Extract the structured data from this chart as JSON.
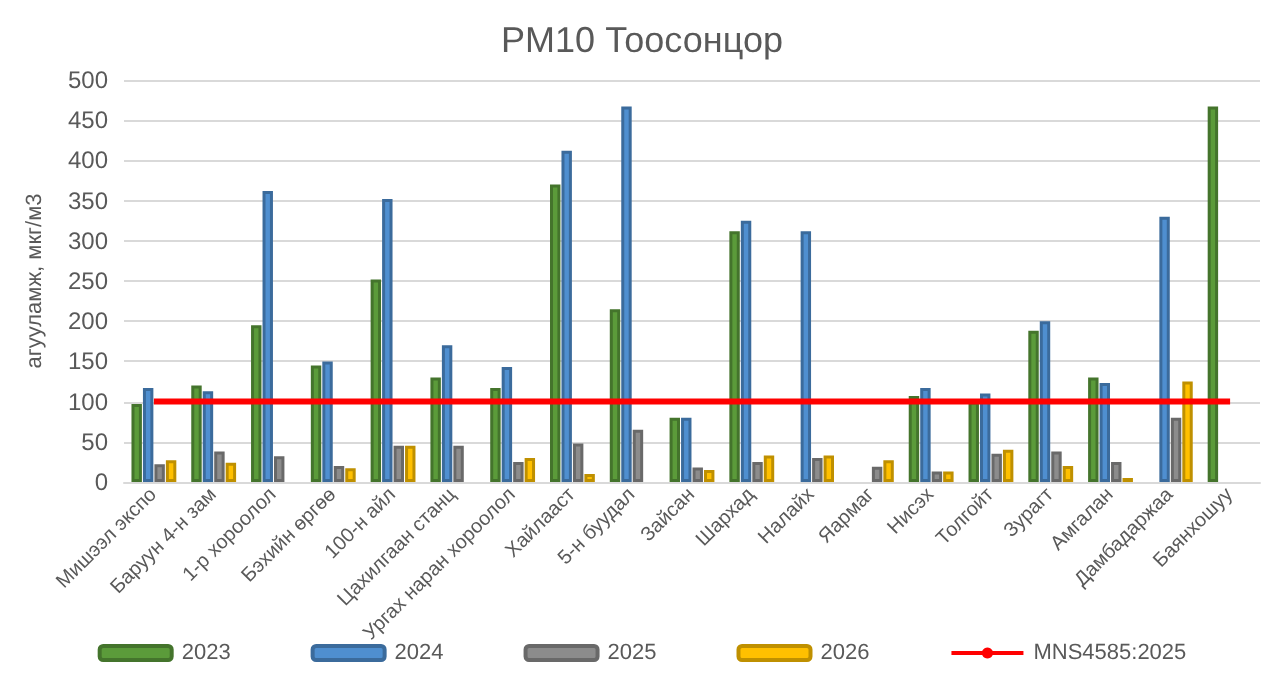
{
  "chart_data": {
    "type": "bar",
    "title": "PM10 Тоосонцор",
    "ylabel": "агууламж, мкг/м3",
    "categories": [
      "Мишээл экспо",
      "Баруун 4-н зам",
      "1-р хороолол",
      "Бэхийн өргөө",
      "100-н айл",
      "Цахилгаан станц",
      "Ургах наран хороолол",
      "Хайлааст",
      "5-н буудал",
      "Зайсан",
      "Шархад",
      "Налайх",
      "Яармаг",
      "Нисэх",
      "Толгойт",
      "Зурагт",
      "Амгалан",
      "Дамбадаржаа",
      "Баянхошуу"
    ],
    "series": [
      {
        "name": "2023",
        "color": "#5b9b3a",
        "values": [
          97,
          120,
          195,
          145,
          252,
          130,
          117,
          370,
          215,
          80,
          312,
          null,
          null,
          107,
          100,
          188,
          130,
          null,
          467
        ]
      },
      {
        "name": "2024",
        "color": "#4f8fd0",
        "values": [
          117,
          113,
          362,
          150,
          352,
          170,
          143,
          412,
          467,
          80,
          325,
          312,
          null,
          117,
          110,
          200,
          123,
          330,
          null
        ]
      },
      {
        "name": "2025",
        "color": "#8c8c8c",
        "values": [
          22,
          38,
          32,
          20,
          45,
          45,
          25,
          48,
          65,
          18,
          25,
          30,
          19,
          13,
          35,
          38,
          25,
          80,
          null
        ]
      },
      {
        "name": "2026",
        "color": "#ffc000",
        "values": [
          27,
          24,
          null,
          17,
          45,
          null,
          30,
          10,
          null,
          15,
          33,
          33,
          27,
          13,
          40,
          20,
          5,
          125,
          null
        ]
      },
      {
        "name": "MNS4585:2025",
        "type": "line",
        "color": "#ff0000",
        "marker": "none",
        "values": [
          100,
          100,
          100,
          100,
          100,
          100,
          100,
          100,
          100,
          100,
          100,
          100,
          100,
          100,
          100,
          100,
          100,
          100,
          100
        ]
      }
    ],
    "ylim": [
      0,
      500
    ],
    "yticks": [
      0,
      50,
      100,
      150,
      200,
      250,
      300,
      350,
      400,
      450,
      500
    ],
    "grid": "y",
    "legend": "bottom"
  }
}
